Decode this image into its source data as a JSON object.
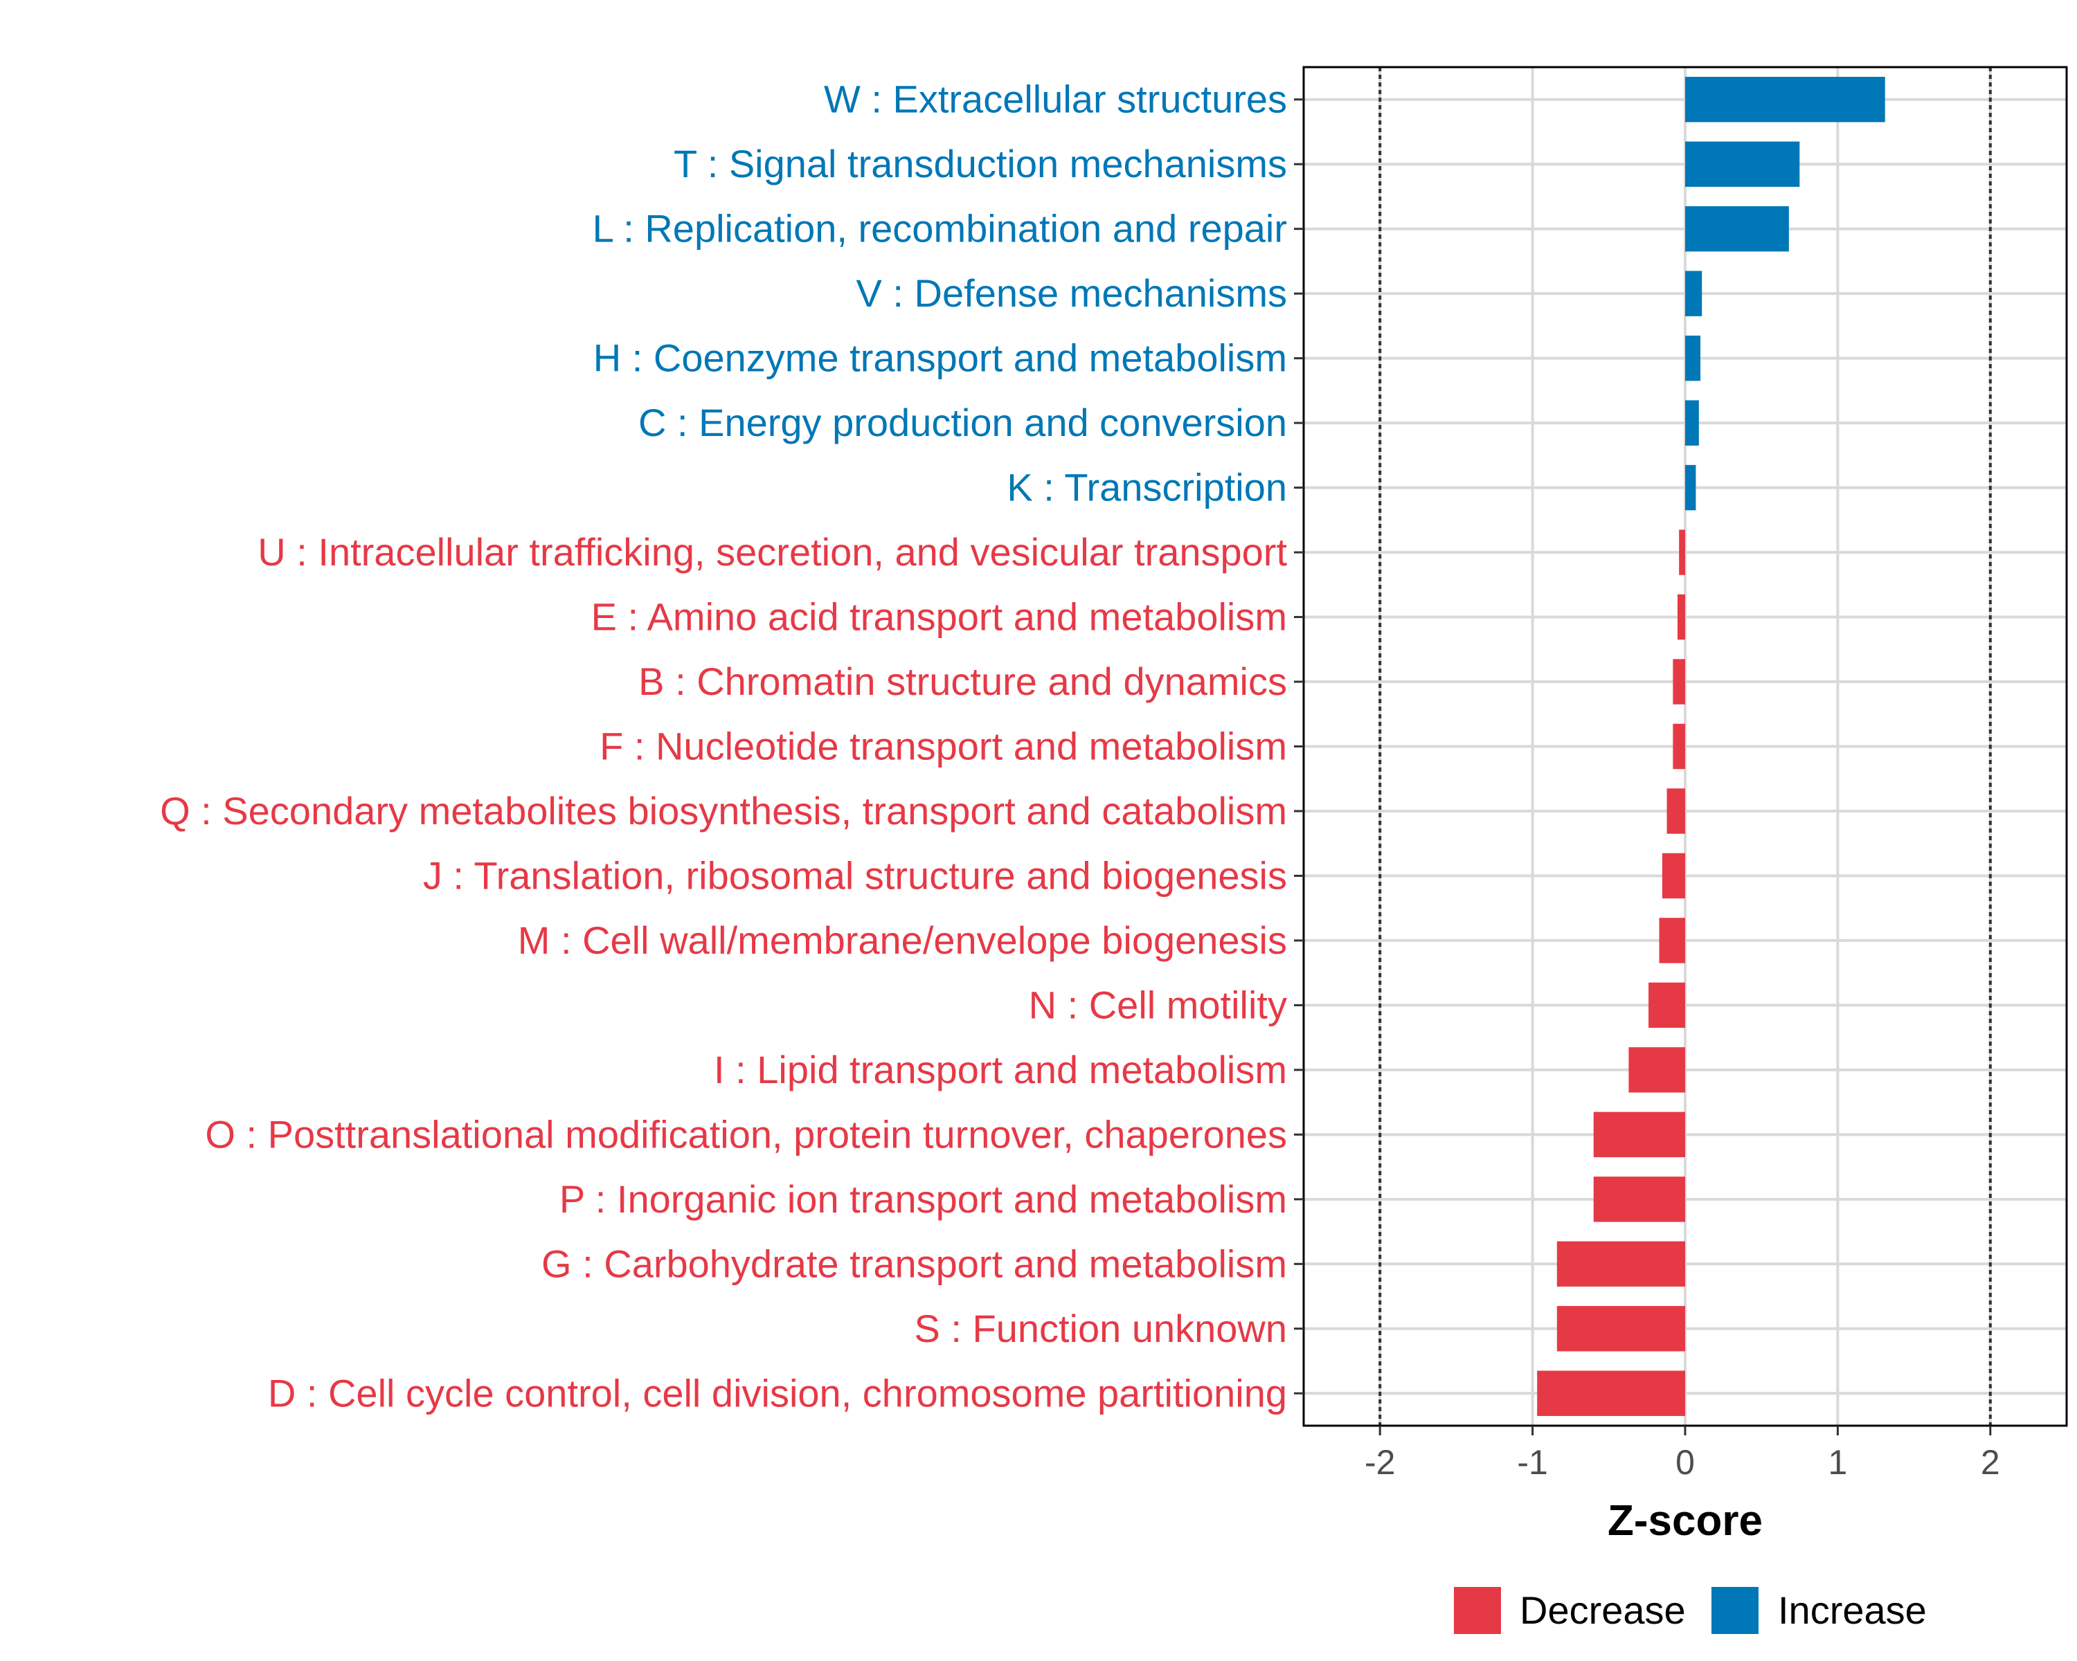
{
  "chart_data": {
    "type": "bar",
    "orientation": "horizontal",
    "title": "",
    "xlabel": "Z-score",
    "ylabel": "",
    "xlim": [
      -2.5,
      2.5
    ],
    "xticks": [
      -2,
      -1,
      0,
      1,
      2
    ],
    "xtick_labels": [
      "-2",
      "-1",
      "0",
      "1",
      "2"
    ],
    "reference_lines": [
      -2,
      2
    ],
    "grid": true,
    "categories": [
      "W : Extracellular structures",
      "T : Signal transduction mechanisms",
      "L : Replication, recombination and repair",
      "V : Defense mechanisms",
      "H : Coenzyme transport and metabolism",
      "C : Energy production and conversion",
      "K : Transcription",
      "U : Intracellular trafficking, secretion, and vesicular transport",
      "E : Amino acid transport and metabolism",
      "B : Chromatin structure and dynamics",
      "F : Nucleotide transport and metabolism",
      "Q : Secondary metabolites biosynthesis, transport and catabolism",
      "J : Translation, ribosomal structure and biogenesis",
      "M : Cell wall/membrane/envelope biogenesis",
      "N : Cell motility",
      "I : Lipid transport and metabolism",
      "O : Posttranslational modification, protein turnover, chaperones",
      "P : Inorganic ion transport and metabolism",
      "G : Carbohydrate transport and metabolism",
      "S : Function unknown",
      "D : Cell cycle control, cell division, chromosome partitioning"
    ],
    "values": [
      1.31,
      0.75,
      0.68,
      0.11,
      0.1,
      0.09,
      0.07,
      -0.04,
      -0.05,
      -0.08,
      -0.08,
      -0.12,
      -0.15,
      -0.17,
      -0.24,
      -0.37,
      -0.6,
      -0.6,
      -0.84,
      -0.84,
      -0.97
    ],
    "groups": [
      "Increase",
      "Increase",
      "Increase",
      "Increase",
      "Increase",
      "Increase",
      "Increase",
      "Decrease",
      "Decrease",
      "Decrease",
      "Decrease",
      "Decrease",
      "Decrease",
      "Decrease",
      "Decrease",
      "Decrease",
      "Decrease",
      "Decrease",
      "Decrease",
      "Decrease",
      "Decrease"
    ],
    "legend": [
      {
        "name": "Decrease",
        "color": "#E63946"
      },
      {
        "name": "Increase",
        "color": "#0077B6"
      }
    ],
    "legend_position": "bottom"
  }
}
